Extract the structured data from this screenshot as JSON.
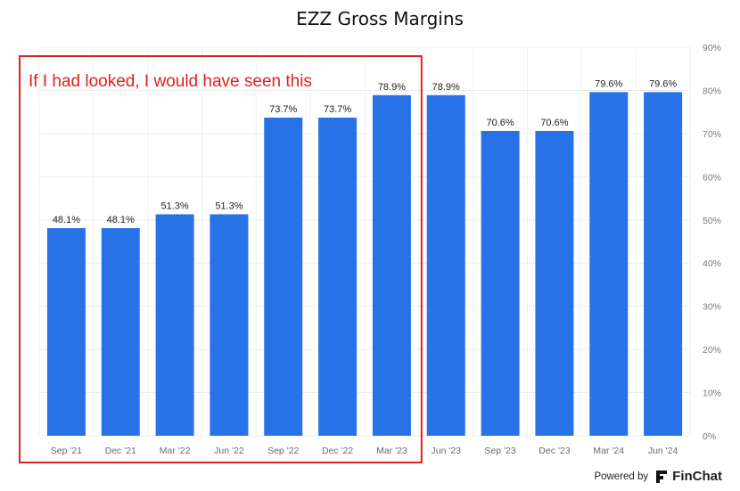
{
  "chart_data": {
    "type": "bar",
    "title": "EZZ Gross Margins",
    "categories": [
      "Sep '21",
      "Dec '21",
      "Mar '22",
      "Jun '22",
      "Sep '22",
      "Dec '22",
      "Mar '23",
      "Jun '23",
      "Sep '23",
      "Dec '23",
      "Mar '24",
      "Jun '24"
    ],
    "values": [
      48.1,
      48.1,
      51.3,
      51.3,
      73.7,
      73.7,
      78.9,
      78.9,
      70.6,
      70.6,
      79.6,
      79.6
    ],
    "value_labels": [
      "48.1%",
      "48.1%",
      "51.3%",
      "51.3%",
      "73.7%",
      "73.7%",
      "78.9%",
      "78.9%",
      "70.6%",
      "70.6%",
      "79.6%",
      "79.6%"
    ],
    "ylim": [
      0,
      90
    ],
    "yticks": [
      "0%",
      "10%",
      "20%",
      "30%",
      "40%",
      "50%",
      "60%",
      "70%",
      "80%",
      "90%"
    ],
    "y_axis_side": "right",
    "grid": true,
    "bar_color": "#2872e8",
    "annotation": {
      "text": "If I had looked, I would have seen this",
      "color": "#e21f1f",
      "box_from": "Sep '21",
      "box_to": "Mar '23"
    }
  },
  "footer": {
    "powered_by": "Powered by",
    "brand": "FinChat"
  }
}
